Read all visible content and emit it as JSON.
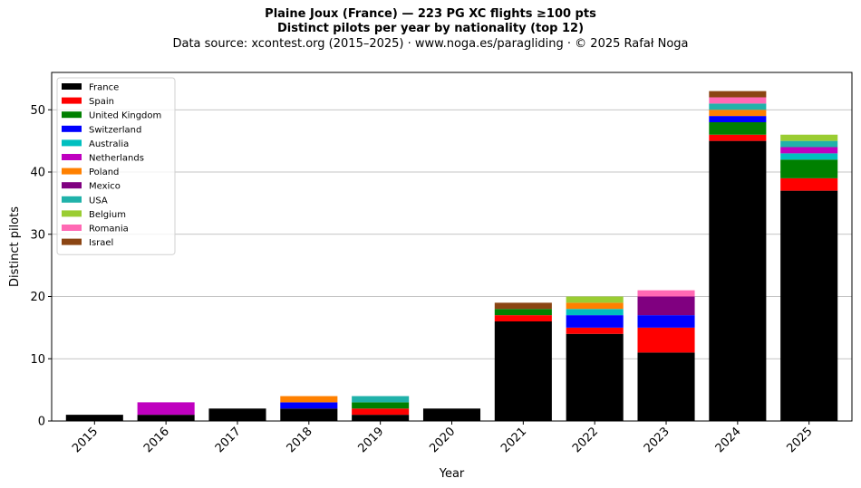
{
  "title": "Plaine Joux (France)  —  223 PG XC flights ≥100 pts",
  "subtitle": "Distinct pilots per year by nationality (top 12)",
  "source": "Data source: xcontest.org (2015–2025)  ·  www.noga.es/paragliding  ·  © 2025 Rafał Noga",
  "chart_data": {
    "type": "bar",
    "stacked": true,
    "title": "Plaine Joux (France)  —  223 PG XC flights ≥100 pts",
    "subtitle": "Distinct pilots per year by nationality (top 12)",
    "xlabel": "Year",
    "ylabel": "Distinct pilots",
    "ylim": [
      0,
      56
    ],
    "yticks": [
      0,
      10,
      20,
      30,
      40,
      50
    ],
    "grid": "y",
    "legend_position": "top-left",
    "categories": [
      "2015",
      "2016",
      "2017",
      "2018",
      "2019",
      "2020",
      "2021",
      "2022",
      "2023",
      "2024",
      "2025"
    ],
    "series": [
      {
        "name": "France",
        "color": "#000000",
        "values": [
          1,
          1,
          2,
          2,
          1,
          2,
          16,
          14,
          11,
          45,
          37
        ]
      },
      {
        "name": "Spain",
        "color": "#ff0000",
        "values": [
          0,
          0,
          0,
          0,
          1,
          0,
          1,
          1,
          4,
          1,
          2
        ]
      },
      {
        "name": "United Kingdom",
        "color": "#008000",
        "values": [
          0,
          0,
          0,
          0,
          1,
          0,
          1,
          0,
          0,
          2,
          3
        ]
      },
      {
        "name": "Switzerland",
        "color": "#0000ff",
        "values": [
          0,
          0,
          0,
          1,
          0,
          0,
          0,
          2,
          2,
          1,
          0
        ]
      },
      {
        "name": "Australia",
        "color": "#00bfbf",
        "values": [
          0,
          0,
          0,
          0,
          0,
          0,
          0,
          1,
          0,
          0,
          1
        ]
      },
      {
        "name": "Netherlands",
        "color": "#bf00bf",
        "values": [
          0,
          2,
          0,
          0,
          0,
          0,
          0,
          0,
          0,
          0,
          1
        ]
      },
      {
        "name": "Poland",
        "color": "#ff8000",
        "values": [
          0,
          0,
          0,
          1,
          0,
          0,
          0,
          1,
          0,
          1,
          0
        ]
      },
      {
        "name": "Mexico",
        "color": "#800080",
        "values": [
          0,
          0,
          0,
          0,
          0,
          0,
          0,
          0,
          3,
          0,
          0
        ]
      },
      {
        "name": "USA",
        "color": "#20b2aa",
        "values": [
          0,
          0,
          0,
          0,
          1,
          0,
          0,
          0,
          0,
          1,
          1
        ]
      },
      {
        "name": "Belgium",
        "color": "#9acd32",
        "values": [
          0,
          0,
          0,
          0,
          0,
          0,
          0,
          1,
          0,
          0,
          1
        ]
      },
      {
        "name": "Romania",
        "color": "#ff69b4",
        "values": [
          0,
          0,
          0,
          0,
          0,
          0,
          0,
          0,
          1,
          1,
          0
        ]
      },
      {
        "name": "Israel",
        "color": "#8b4513",
        "values": [
          0,
          0,
          0,
          0,
          0,
          0,
          1,
          0,
          0,
          1,
          0
        ]
      }
    ]
  }
}
